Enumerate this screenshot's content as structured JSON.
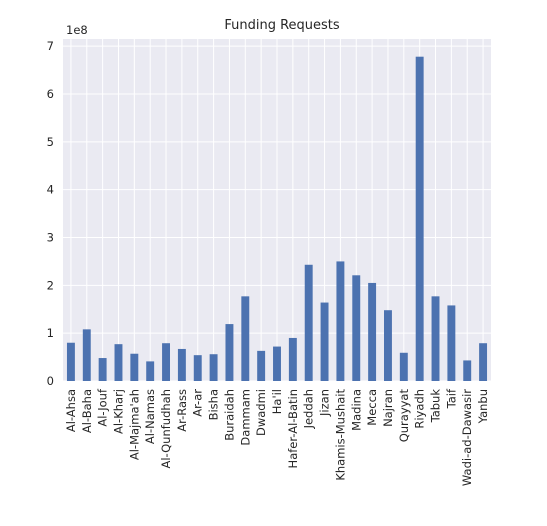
{
  "chart_data": {
    "type": "bar",
    "title": "Funding Requests",
    "xlabel": "",
    "ylabel": "",
    "offset_label": "1e8",
    "ylim": [
      0,
      7.15
    ],
    "yticks": [
      "0",
      "1",
      "2",
      "3",
      "4",
      "5",
      "6",
      "7"
    ],
    "grid": true,
    "legend": "none",
    "bar_color": "#4c72b0",
    "plot_background": "#eaeaf2",
    "categories": [
      "Al-Ahsa",
      "Al-Baha",
      "Al-Jouf",
      "Al-Kharj",
      "Al-Majma'ah",
      "Al-Namas",
      "Al-Qunfudhah",
      "Ar-Rass",
      "Ar-ar",
      "Bisha",
      "Buraidah",
      "Dammam",
      "Dwadmi",
      "Ha'il",
      "Hafer-Al-Batin",
      "Jeddah",
      "Jizan",
      "Khamis-Mushait",
      "Madina",
      "Mecca",
      "Najran",
      "Qurayyat",
      "Riyadh",
      "Tabuk",
      "Taif",
      "Wadi-ad-Dawasir",
      "Yanbu"
    ],
    "values": [
      0.8,
      1.08,
      0.48,
      0.77,
      0.57,
      0.41,
      0.79,
      0.67,
      0.54,
      0.56,
      1.19,
      1.77,
      0.63,
      0.72,
      0.9,
      2.43,
      1.64,
      2.5,
      2.21,
      2.05,
      1.48,
      0.59,
      6.78,
      1.77,
      1.58,
      0.43,
      0.79
    ]
  }
}
